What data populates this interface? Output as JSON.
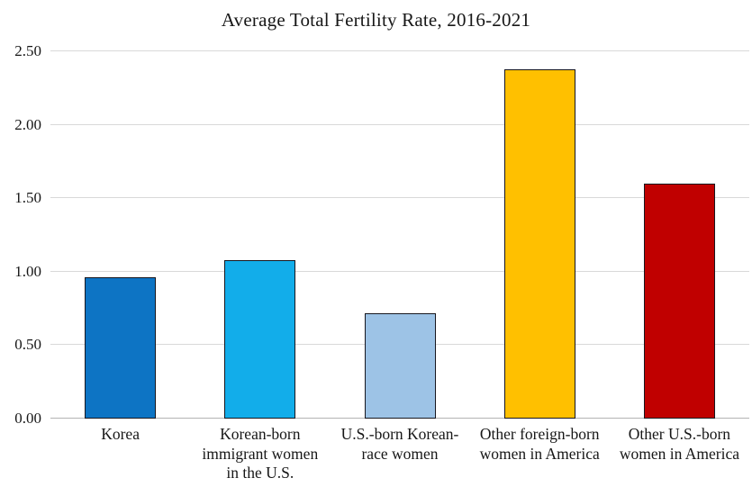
{
  "chart_data": {
    "type": "bar",
    "title": "Average Total Fertility Rate, 2016-2021",
    "categories": [
      "Korea",
      "Korean-born\nimmigrant women\nin the U.S.",
      "U.S.-born Korean-\nrace women",
      "Other foreign-born\nwomen in America",
      "Other U.S.-born\nwomen in America"
    ],
    "values": [
      0.96,
      1.08,
      0.72,
      2.38,
      1.6
    ],
    "bar_colors": [
      "#0d74c4",
      "#12adea",
      "#9dc3e6",
      "#ffc000",
      "#c00000"
    ],
    "bar_border_color": "#17171f",
    "xlabel": "",
    "ylabel": "",
    "ylim": [
      0,
      2.5
    ],
    "yticks": [
      0,
      0.5,
      1.0,
      1.5,
      2.0,
      2.5
    ],
    "ytick_labels": [
      "0.00",
      "0.50",
      "1.00",
      "1.50",
      "2.00",
      "2.50"
    ],
    "grid": true,
    "gridline_color": "#d9d9d9",
    "baseline_color": "#b3b3b3",
    "legend_position": "none",
    "background": "#ffffff"
  }
}
